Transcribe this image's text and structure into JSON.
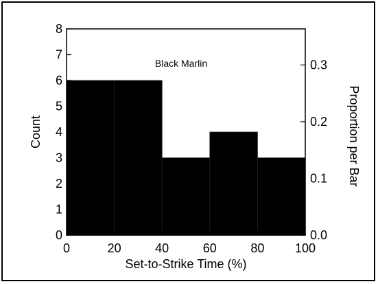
{
  "chart_data": {
    "type": "bar",
    "annotation": "Black Marlin",
    "xlabel": "Set-to-Strike Time (%)",
    "ylabel": "Count",
    "y2label": "Proportion per Bar",
    "bins": [
      {
        "x0": 0,
        "x1": 20,
        "count": 6
      },
      {
        "x0": 20,
        "x1": 40,
        "count": 6
      },
      {
        "x0": 40,
        "x1": 60,
        "count": 3
      },
      {
        "x0": 60,
        "x1": 80,
        "count": 4
      },
      {
        "x0": 80,
        "x1": 100,
        "count": 3
      }
    ],
    "xlim": [
      0,
      100
    ],
    "ylim": [
      0,
      8
    ],
    "xticks": [
      "0",
      "20",
      "40",
      "60",
      "80",
      "100"
    ],
    "yticks": [
      "0",
      "1",
      "2",
      "3",
      "4",
      "5",
      "6",
      "7",
      "8"
    ],
    "y2ticks": [
      {
        "value": 0.0,
        "label": "0.0"
      },
      {
        "value": 0.1,
        "label": "0.1"
      },
      {
        "value": 0.2,
        "label": "0.2"
      },
      {
        "value": 0.3,
        "label": "0.3"
      }
    ],
    "y2_per_count": 0.0454545,
    "bar_color": "#000000",
    "grid": false
  }
}
